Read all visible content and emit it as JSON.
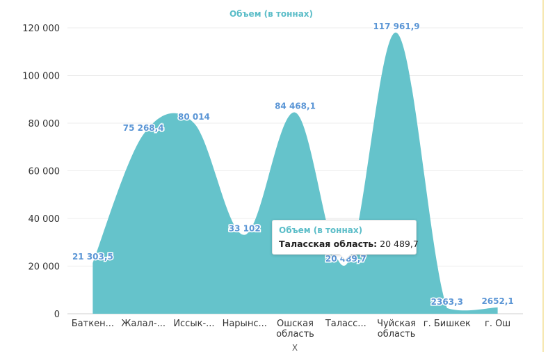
{
  "chart_data": {
    "type": "area",
    "title": "Объем (в тоннах)",
    "xlabel": "X",
    "ylabel": "",
    "ylim": [
      0,
      120000
    ],
    "yticks": [
      0,
      20000,
      40000,
      60000,
      80000,
      100000,
      120000
    ],
    "ytick_labels": [
      "0",
      "20 000",
      "40 000",
      "60 000",
      "80 000",
      "100 000",
      "120 000"
    ],
    "categories": [
      [
        "Баткен..."
      ],
      [
        "Жалал-..."
      ],
      [
        "Иссык-..."
      ],
      [
        "Нарынс..."
      ],
      [
        "Ошская",
        "область"
      ],
      [
        "Таласс..."
      ],
      [
        "Чуйская",
        "область"
      ],
      [
        "г. Бишкек"
      ],
      [
        "г. Ош"
      ]
    ],
    "values": [
      21303.5,
      75268.4,
      80014,
      33102,
      84468.1,
      20489.7,
      117961.9,
      2363.3,
      2652.1
    ],
    "data_labels": [
      "21 303,5",
      "75 268,4",
      "80 014",
      "33 102",
      "84 468,1",
      "20 489,7",
      "117 961,9",
      "2363,3",
      "2652,1"
    ],
    "grid": true,
    "legend": "none",
    "colors": {
      "area": "#65c3cb",
      "label": "#5a95d5",
      "title": "#5bbdc8",
      "axis_text": "#333333"
    }
  },
  "tooltip": {
    "series_name": "Объем (в тоннах)",
    "category": "Таласская область:",
    "value": "20 489,7"
  }
}
